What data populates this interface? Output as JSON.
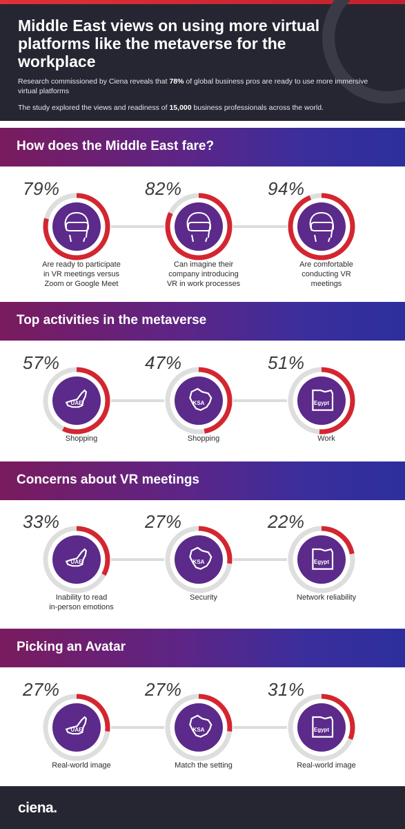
{
  "header": {
    "title": "Middle East views on using more virtual platforms like the metaverse for the workplace",
    "line1_pre": "Research commissioned by Ciena reveals that ",
    "line1_bold": "78%",
    "line1_post": " of global business pros are ready to use more immersive virtual platforms",
    "line2_pre": "The study explored the views and readiness of ",
    "line2_bold": "15,000",
    "line2_post": " business professionals across the world."
  },
  "sections": [
    {
      "title": "How does the Middle East fare?",
      "items": [
        {
          "pct_text": "79%",
          "value": 79,
          "icon": "vr-headset-icon",
          "label_lines": [
            "Are ready to participate",
            "in VR meetings versus",
            "Zoom or Google Meet"
          ]
        },
        {
          "pct_text": "82%",
          "value": 82,
          "icon": "vr-headset-icon",
          "label_lines": [
            "Can imagine their",
            "company introducing",
            "VR in work processes"
          ]
        },
        {
          "pct_text": "94%",
          "value": 94,
          "icon": "vr-headset-icon",
          "label_lines": [
            "Are comfortable",
            "conducting VR",
            "meetings"
          ]
        }
      ]
    },
    {
      "title": "Top activities in the metaverse",
      "items": [
        {
          "pct_text": "57%",
          "value": 57,
          "icon": "uae-map-icon",
          "map_label": "UAE",
          "label_lines": [
            "Shopping"
          ]
        },
        {
          "pct_text": "47%",
          "value": 47,
          "icon": "ksa-map-icon",
          "map_label": "KSA",
          "label_lines": [
            "Shopping"
          ]
        },
        {
          "pct_text": "51%",
          "value": 51,
          "icon": "egypt-map-icon",
          "map_label": "Egypt",
          "label_lines": [
            "Work"
          ]
        }
      ]
    },
    {
      "title": "Concerns about VR meetings",
      "items": [
        {
          "pct_text": "33%",
          "value": 33,
          "icon": "uae-map-icon",
          "map_label": "UAE",
          "label_lines": [
            "Inability to read",
            "in-person emotions"
          ]
        },
        {
          "pct_text": "27%",
          "value": 27,
          "icon": "ksa-map-icon",
          "map_label": "KSA",
          "label_lines": [
            "Security"
          ]
        },
        {
          "pct_text": "22%",
          "value": 22,
          "icon": "egypt-map-icon",
          "map_label": "Egypt",
          "label_lines": [
            "Network reliability"
          ]
        }
      ]
    },
    {
      "title": "Picking an Avatar",
      "items": [
        {
          "pct_text": "27%",
          "value": 27,
          "icon": "uae-map-icon",
          "map_label": "UAE",
          "label_lines": [
            "Real-world image"
          ]
        },
        {
          "pct_text": "27%",
          "value": 27,
          "icon": "ksa-map-icon",
          "map_label": "KSA",
          "label_lines": [
            "Match the setting"
          ]
        },
        {
          "pct_text": "31%",
          "value": 31,
          "icon": "egypt-map-icon",
          "map_label": "Egypt",
          "label_lines": [
            "Real-world image"
          ]
        }
      ]
    }
  ],
  "footer": {
    "logo": "ciena."
  },
  "colors": {
    "accent_red": "#d42630",
    "ring_track": "#dedede",
    "inner_purple": "#5b2a8a",
    "banner_magenta": "#7a1b5e",
    "banner_blue": "#2d2f9e",
    "dark_bg": "#252631"
  }
}
